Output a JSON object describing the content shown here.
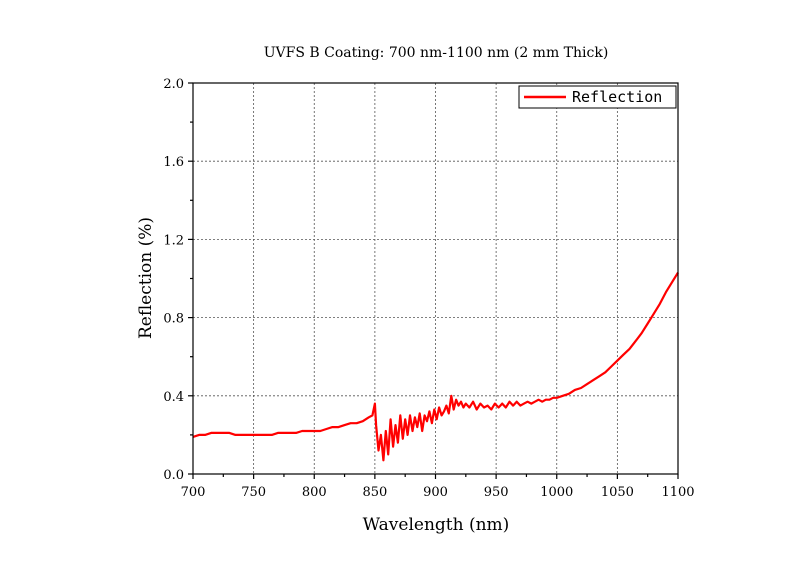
{
  "chart_data": {
    "type": "line",
    "title": "UVFS B Coating: 700 nm-1100 nm (2 mm Thick)",
    "xlabel": "Wavelength (nm)",
    "ylabel": "Reflection (%)",
    "xlim": [
      700,
      1100
    ],
    "ylim": [
      0.0,
      2.0
    ],
    "xticks": [
      700,
      750,
      800,
      850,
      900,
      950,
      1000,
      1050,
      1100
    ],
    "xtick_labels": [
      "700",
      "750",
      "800",
      "850",
      "900",
      "950",
      "1000",
      "1050",
      "1100"
    ],
    "yticks": [
      0.0,
      0.4,
      0.8,
      1.2,
      1.6,
      2.0
    ],
    "ytick_labels": [
      "0.0",
      "0.4",
      "0.8",
      "1.2",
      "1.6",
      "2.0"
    ],
    "grid": true,
    "legend_position": "top-right",
    "series": [
      {
        "name": "Reflection",
        "color": "#ff0000",
        "x": [
          700,
          705,
          710,
          715,
          720,
          725,
          730,
          735,
          740,
          745,
          750,
          755,
          760,
          765,
          770,
          775,
          780,
          785,
          790,
          795,
          800,
          805,
          810,
          815,
          820,
          825,
          830,
          835,
          840,
          845,
          848,
          850,
          851,
          853,
          855,
          857,
          859,
          861,
          863,
          865,
          867,
          869,
          871,
          873,
          875,
          877,
          879,
          881,
          883,
          885,
          887,
          889,
          891,
          893,
          895,
          897,
          899,
          901,
          903,
          905,
          907,
          909,
          911,
          913,
          915,
          917,
          919,
          921,
          923,
          925,
          928,
          931,
          934,
          937,
          940,
          943,
          946,
          949,
          952,
          955,
          958,
          961,
          964,
          967,
          970,
          973,
          976,
          979,
          982,
          985,
          988,
          991,
          994,
          997,
          1000,
          1005,
          1010,
          1015,
          1020,
          1025,
          1030,
          1035,
          1040,
          1045,
          1050,
          1055,
          1060,
          1065,
          1070,
          1075,
          1080,
          1085,
          1090,
          1095,
          1100
        ],
        "y": [
          0.19,
          0.2,
          0.2,
          0.21,
          0.21,
          0.21,
          0.21,
          0.2,
          0.2,
          0.2,
          0.2,
          0.2,
          0.2,
          0.2,
          0.21,
          0.21,
          0.21,
          0.21,
          0.22,
          0.22,
          0.22,
          0.22,
          0.23,
          0.24,
          0.24,
          0.25,
          0.26,
          0.26,
          0.27,
          0.29,
          0.3,
          0.36,
          0.25,
          0.12,
          0.2,
          0.07,
          0.22,
          0.1,
          0.28,
          0.14,
          0.25,
          0.16,
          0.3,
          0.18,
          0.28,
          0.2,
          0.3,
          0.22,
          0.29,
          0.24,
          0.31,
          0.22,
          0.3,
          0.27,
          0.32,
          0.26,
          0.33,
          0.28,
          0.34,
          0.3,
          0.32,
          0.35,
          0.31,
          0.4,
          0.33,
          0.38,
          0.35,
          0.37,
          0.34,
          0.36,
          0.34,
          0.37,
          0.33,
          0.36,
          0.34,
          0.35,
          0.33,
          0.36,
          0.34,
          0.36,
          0.34,
          0.37,
          0.35,
          0.37,
          0.35,
          0.36,
          0.37,
          0.36,
          0.37,
          0.38,
          0.37,
          0.38,
          0.38,
          0.39,
          0.39,
          0.4,
          0.41,
          0.43,
          0.44,
          0.46,
          0.48,
          0.5,
          0.52,
          0.55,
          0.58,
          0.61,
          0.64,
          0.68,
          0.72,
          0.77,
          0.82,
          0.87,
          0.93,
          0.98,
          1.03
        ]
      }
    ]
  }
}
